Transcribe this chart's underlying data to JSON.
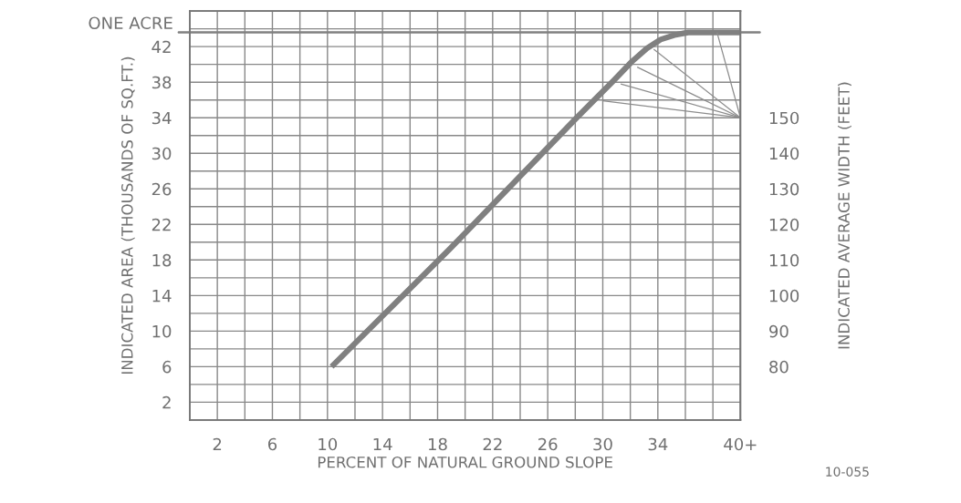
{
  "chart_data": {
    "type": "line",
    "xlabel": "PERCENT OF NATURAL GROUND SLOPE",
    "ylabel": "INDICATED AREA (THOUSANDS OF SQ.FT.)",
    "y2label": "INDICATED AVERAGE WIDTH (FEET)",
    "annotations": [
      "10-055"
    ],
    "series": [
      {
        "color": "#808080",
        "x": [
          10.3,
          18.8,
          28.1,
          30.8,
          32.1,
          33.2,
          34.2,
          35.2,
          36.2,
          38,
          40
        ],
        "values": [
          6,
          19.1,
          34,
          38.2,
          40.3,
          41.8,
          42.8,
          43.3,
          43.6,
          43.6,
          43.6
        ]
      },
      {
        "color": "#8c8c8c",
        "x": [
          30,
          40
        ],
        "values": [
          35.9,
          34
        ]
      },
      {
        "color": "#8c8c8c",
        "x": [
          31.3,
          40
        ],
        "values": [
          37.8,
          34
        ]
      },
      {
        "color": "#8c8c8c",
        "x": [
          32.5,
          40
        ],
        "values": [
          39.7,
          34
        ]
      },
      {
        "color": "#8c8c8c",
        "x": [
          33.7,
          40
        ],
        "values": [
          41.7,
          34
        ]
      },
      {
        "color": "#8c8c8c",
        "x": [
          38.3,
          40
        ],
        "values": [
          43.6,
          34
        ]
      }
    ],
    "xlim": [
      0,
      40
    ],
    "xticks": [
      2,
      {
        "value": 4,
        "label": null
      },
      6,
      {
        "value": 8,
        "label": null
      },
      10,
      {
        "value": 12,
        "label": null
      },
      14,
      {
        "value": 16,
        "label": null
      },
      18,
      {
        "value": 20,
        "label": null
      },
      22,
      {
        "value": 24,
        "label": null
      },
      26,
      {
        "value": 28,
        "label": null
      },
      30,
      {
        "value": 32,
        "label": null
      },
      34,
      {
        "value": 36,
        "label": null
      },
      {
        "value": 38,
        "label": null
      },
      {
        "value": 40,
        "label": "40+"
      }
    ],
    "ylim": [
      0,
      46
    ],
    "yticks": [
      2,
      {
        "value": 4,
        "label": null
      },
      6,
      {
        "value": 8,
        "label": null
      },
      10,
      {
        "value": 12,
        "label": null
      },
      14,
      {
        "value": 16,
        "label": null
      },
      18,
      {
        "value": 20,
        "label": null
      },
      22,
      {
        "value": 24,
        "label": null
      },
      26,
      {
        "value": 28,
        "label": null
      },
      30,
      {
        "value": 32,
        "label": null
      },
      34,
      {
        "value": 36,
        "label": null
      },
      38,
      {
        "value": 40,
        "label": null
      },
      42,
      {
        "value": 44,
        "label": null
      }
    ],
    "y2lim": [
      65,
      180
    ],
    "y2ticks": [
      80,
      90,
      100,
      110,
      120,
      130,
      140,
      150
    ],
    "ref_lines": [
      {
        "axis": "y",
        "value": 43.6,
        "label": "ONE ACRE",
        "color": "#808080"
      }
    ],
    "grid": true,
    "marker": "none",
    "line_style": "solid",
    "legend": false
  }
}
